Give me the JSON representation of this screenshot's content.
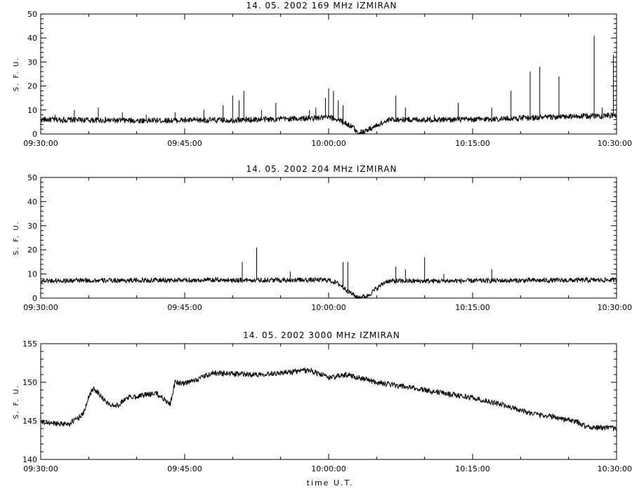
{
  "figure": {
    "bottom_label": "time U.T."
  },
  "chart_data": [
    {
      "type": "line",
      "title": "14. 05. 2002   169 MHz   IZMIRAN",
      "xlabel": "",
      "ylabel": "S. F. U.",
      "x_range": [
        "09:30:00",
        "10:30:00"
      ],
      "x_ticks": [
        "09:30:00",
        "09:45:00",
        "10:00:00",
        "10:15:00",
        "10:30:00"
      ],
      "ylim": [
        0,
        50
      ],
      "y_ticks": [
        "0",
        "10",
        "20",
        "30",
        "40",
        "50"
      ],
      "grid": false,
      "series": [
        {
          "baseline": [
            [
              "09:30:00",
              6.0
            ],
            [
              "09:40:00",
              5.6
            ],
            [
              "09:50:00",
              5.8
            ],
            [
              "09:58:00",
              6.5
            ],
            [
              "10:00:00",
              6.9
            ],
            [
              "10:01:00",
              6.0
            ],
            [
              "10:02:30",
              3.0
            ],
            [
              "10:03:00",
              0.5
            ],
            [
              "10:04:00",
              1.5
            ],
            [
              "10:05:30",
              4.5
            ],
            [
              "10:06:30",
              6.0
            ],
            [
              "10:15:00",
              6.0
            ],
            [
              "10:20:00",
              6.6
            ],
            [
              "10:25:00",
              7.2
            ],
            [
              "10:30:00",
              7.8
            ]
          ],
          "spikes": [
            [
              "09:31:30",
              8
            ],
            [
              "09:33:30",
              10
            ],
            [
              "09:36:00",
              11
            ],
            [
              "09:38:30",
              9
            ],
            [
              "09:41:00",
              8
            ],
            [
              "09:44:00",
              9
            ],
            [
              "09:47:00",
              10
            ],
            [
              "09:49:00",
              12
            ],
            [
              "09:50:00",
              16
            ],
            [
              "09:50:40",
              14
            ],
            [
              "09:51:10",
              18
            ],
            [
              "09:53:00",
              10
            ],
            [
              "09:54:30",
              13
            ],
            [
              "09:58:00",
              10
            ],
            [
              "09:58:40",
              11
            ],
            [
              "09:59:40",
              15
            ],
            [
              "10:00:00",
              19
            ],
            [
              "10:00:30",
              18
            ],
            [
              "10:01:00",
              14
            ],
            [
              "10:01:30",
              12
            ],
            [
              "10:07:00",
              16
            ],
            [
              "10:08:00",
              11
            ],
            [
              "10:11:00",
              8
            ],
            [
              "10:13:30",
              13
            ],
            [
              "10:17:00",
              11
            ],
            [
              "10:19:00",
              18
            ],
            [
              "10:21:00",
              26
            ],
            [
              "10:22:00",
              28
            ],
            [
              "10:24:00",
              24
            ],
            [
              "10:27:40",
              41
            ],
            [
              "10:28:30",
              11
            ],
            [
              "10:29:40",
              33
            ]
          ],
          "noise": 1.2
        }
      ]
    },
    {
      "type": "line",
      "title": "14. 05. 2002   204 MHz   IZMIRAN",
      "xlabel": "",
      "ylabel": "S. F. U.",
      "x_range": [
        "09:30:00",
        "10:30:00"
      ],
      "x_ticks": [
        "09:30:00",
        "09:45:00",
        "10:00:00",
        "10:15:00",
        "10:30:00"
      ],
      "ylim": [
        0,
        50
      ],
      "y_ticks": [
        "0",
        "10",
        "20",
        "30",
        "40",
        "50"
      ],
      "grid": false,
      "series": [
        {
          "baseline": [
            [
              "09:30:00",
              7.2
            ],
            [
              "09:50:00",
              7.5
            ],
            [
              "10:00:00",
              7.5
            ],
            [
              "10:01:00",
              6.0
            ],
            [
              "10:02:00",
              3.0
            ],
            [
              "10:03:00",
              0.2
            ],
            [
              "10:04:00",
              0.8
            ],
            [
              "10:05:00",
              4.0
            ],
            [
              "10:06:00",
              7.0
            ],
            [
              "10:30:00",
              7.5
            ]
          ],
          "spikes": [
            [
              "09:51:00",
              15
            ],
            [
              "09:52:30",
              21
            ],
            [
              "09:56:00",
              11
            ],
            [
              "10:01:30",
              15
            ],
            [
              "10:02:00",
              15
            ],
            [
              "10:07:00",
              13
            ],
            [
              "10:08:00",
              12
            ],
            [
              "10:10:00",
              17
            ],
            [
              "10:12:00",
              10
            ],
            [
              "10:17:00",
              12
            ]
          ],
          "noise": 1.0
        }
      ]
    },
    {
      "type": "line",
      "title": "14. 05. 2002   3000 MHz   IZMIRAN",
      "xlabel": "time U.T.",
      "ylabel": "S. F. U.",
      "x_range": [
        "09:30:00",
        "10:30:00"
      ],
      "x_ticks": [
        "09:30:00",
        "09:45:00",
        "10:00:00",
        "10:15:00",
        "10:30:00"
      ],
      "ylim": [
        140,
        155
      ],
      "y_ticks": [
        "140",
        "145",
        "150",
        "155"
      ],
      "grid": false,
      "series": [
        {
          "baseline": [
            [
              "09:30:00",
              144.8
            ],
            [
              "09:33:00",
              144.6
            ],
            [
              "09:34:30",
              146.0
            ],
            [
              "09:35:00",
              148.2
            ],
            [
              "09:35:30",
              149.3
            ],
            [
              "09:37:00",
              147.2
            ],
            [
              "09:38:00",
              147.0
            ],
            [
              "09:39:00",
              148.0
            ],
            [
              "09:42:00",
              148.6
            ],
            [
              "09:43:30",
              147.2
            ],
            [
              "09:44:00",
              150.0
            ],
            [
              "09:45:00",
              149.8
            ],
            [
              "09:48:00",
              151.2
            ],
            [
              "09:52:00",
              151.0
            ],
            [
              "09:56:00",
              151.3
            ],
            [
              "09:58:00",
              151.6
            ],
            [
              "10:00:00",
              150.6
            ],
            [
              "10:02:00",
              151.0
            ],
            [
              "10:05:00",
              150.0
            ],
            [
              "10:08:00",
              149.4
            ],
            [
              "10:12:00",
              148.6
            ],
            [
              "10:15:00",
              148.0
            ],
            [
              "10:17:00",
              147.4
            ],
            [
              "10:19:00",
              146.8
            ],
            [
              "10:21:00",
              146.0
            ],
            [
              "10:24:00",
              145.4
            ],
            [
              "10:26:00",
              144.8
            ],
            [
              "10:27:00",
              144.2
            ],
            [
              "10:30:00",
              144.0
            ]
          ],
          "spikes": [],
          "noise": 0.35
        }
      ]
    }
  ]
}
